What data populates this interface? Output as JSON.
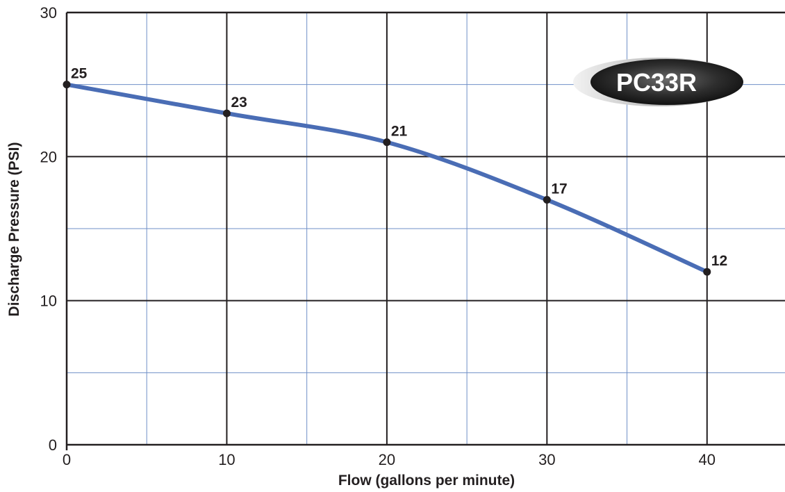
{
  "chart_data": {
    "type": "line",
    "title": "",
    "xlabel": "Flow (gallons per minute)",
    "ylabel": "Discharge Pressure (PSI)",
    "xlim": [
      0,
      45
    ],
    "ylim": [
      0,
      30
    ],
    "x_major_ticks": [
      0,
      10,
      20,
      30,
      40
    ],
    "y_major_ticks": [
      0,
      10,
      20,
      30
    ],
    "x_tick_labels": [
      "0",
      "10",
      "20",
      "30",
      "40"
    ],
    "y_tick_labels": [
      "0",
      "10",
      "20",
      "30"
    ],
    "grid": true,
    "minor_grid": true,
    "series": [
      {
        "x": [
          0,
          10,
          20,
          30,
          40
        ],
        "values": [
          25,
          23,
          21,
          17,
          12
        ],
        "labels": [
          "25",
          "23",
          "21",
          "17",
          "12"
        ],
        "color": "#4a6db5"
      }
    ],
    "badge": {
      "text": "PC33R"
    }
  }
}
